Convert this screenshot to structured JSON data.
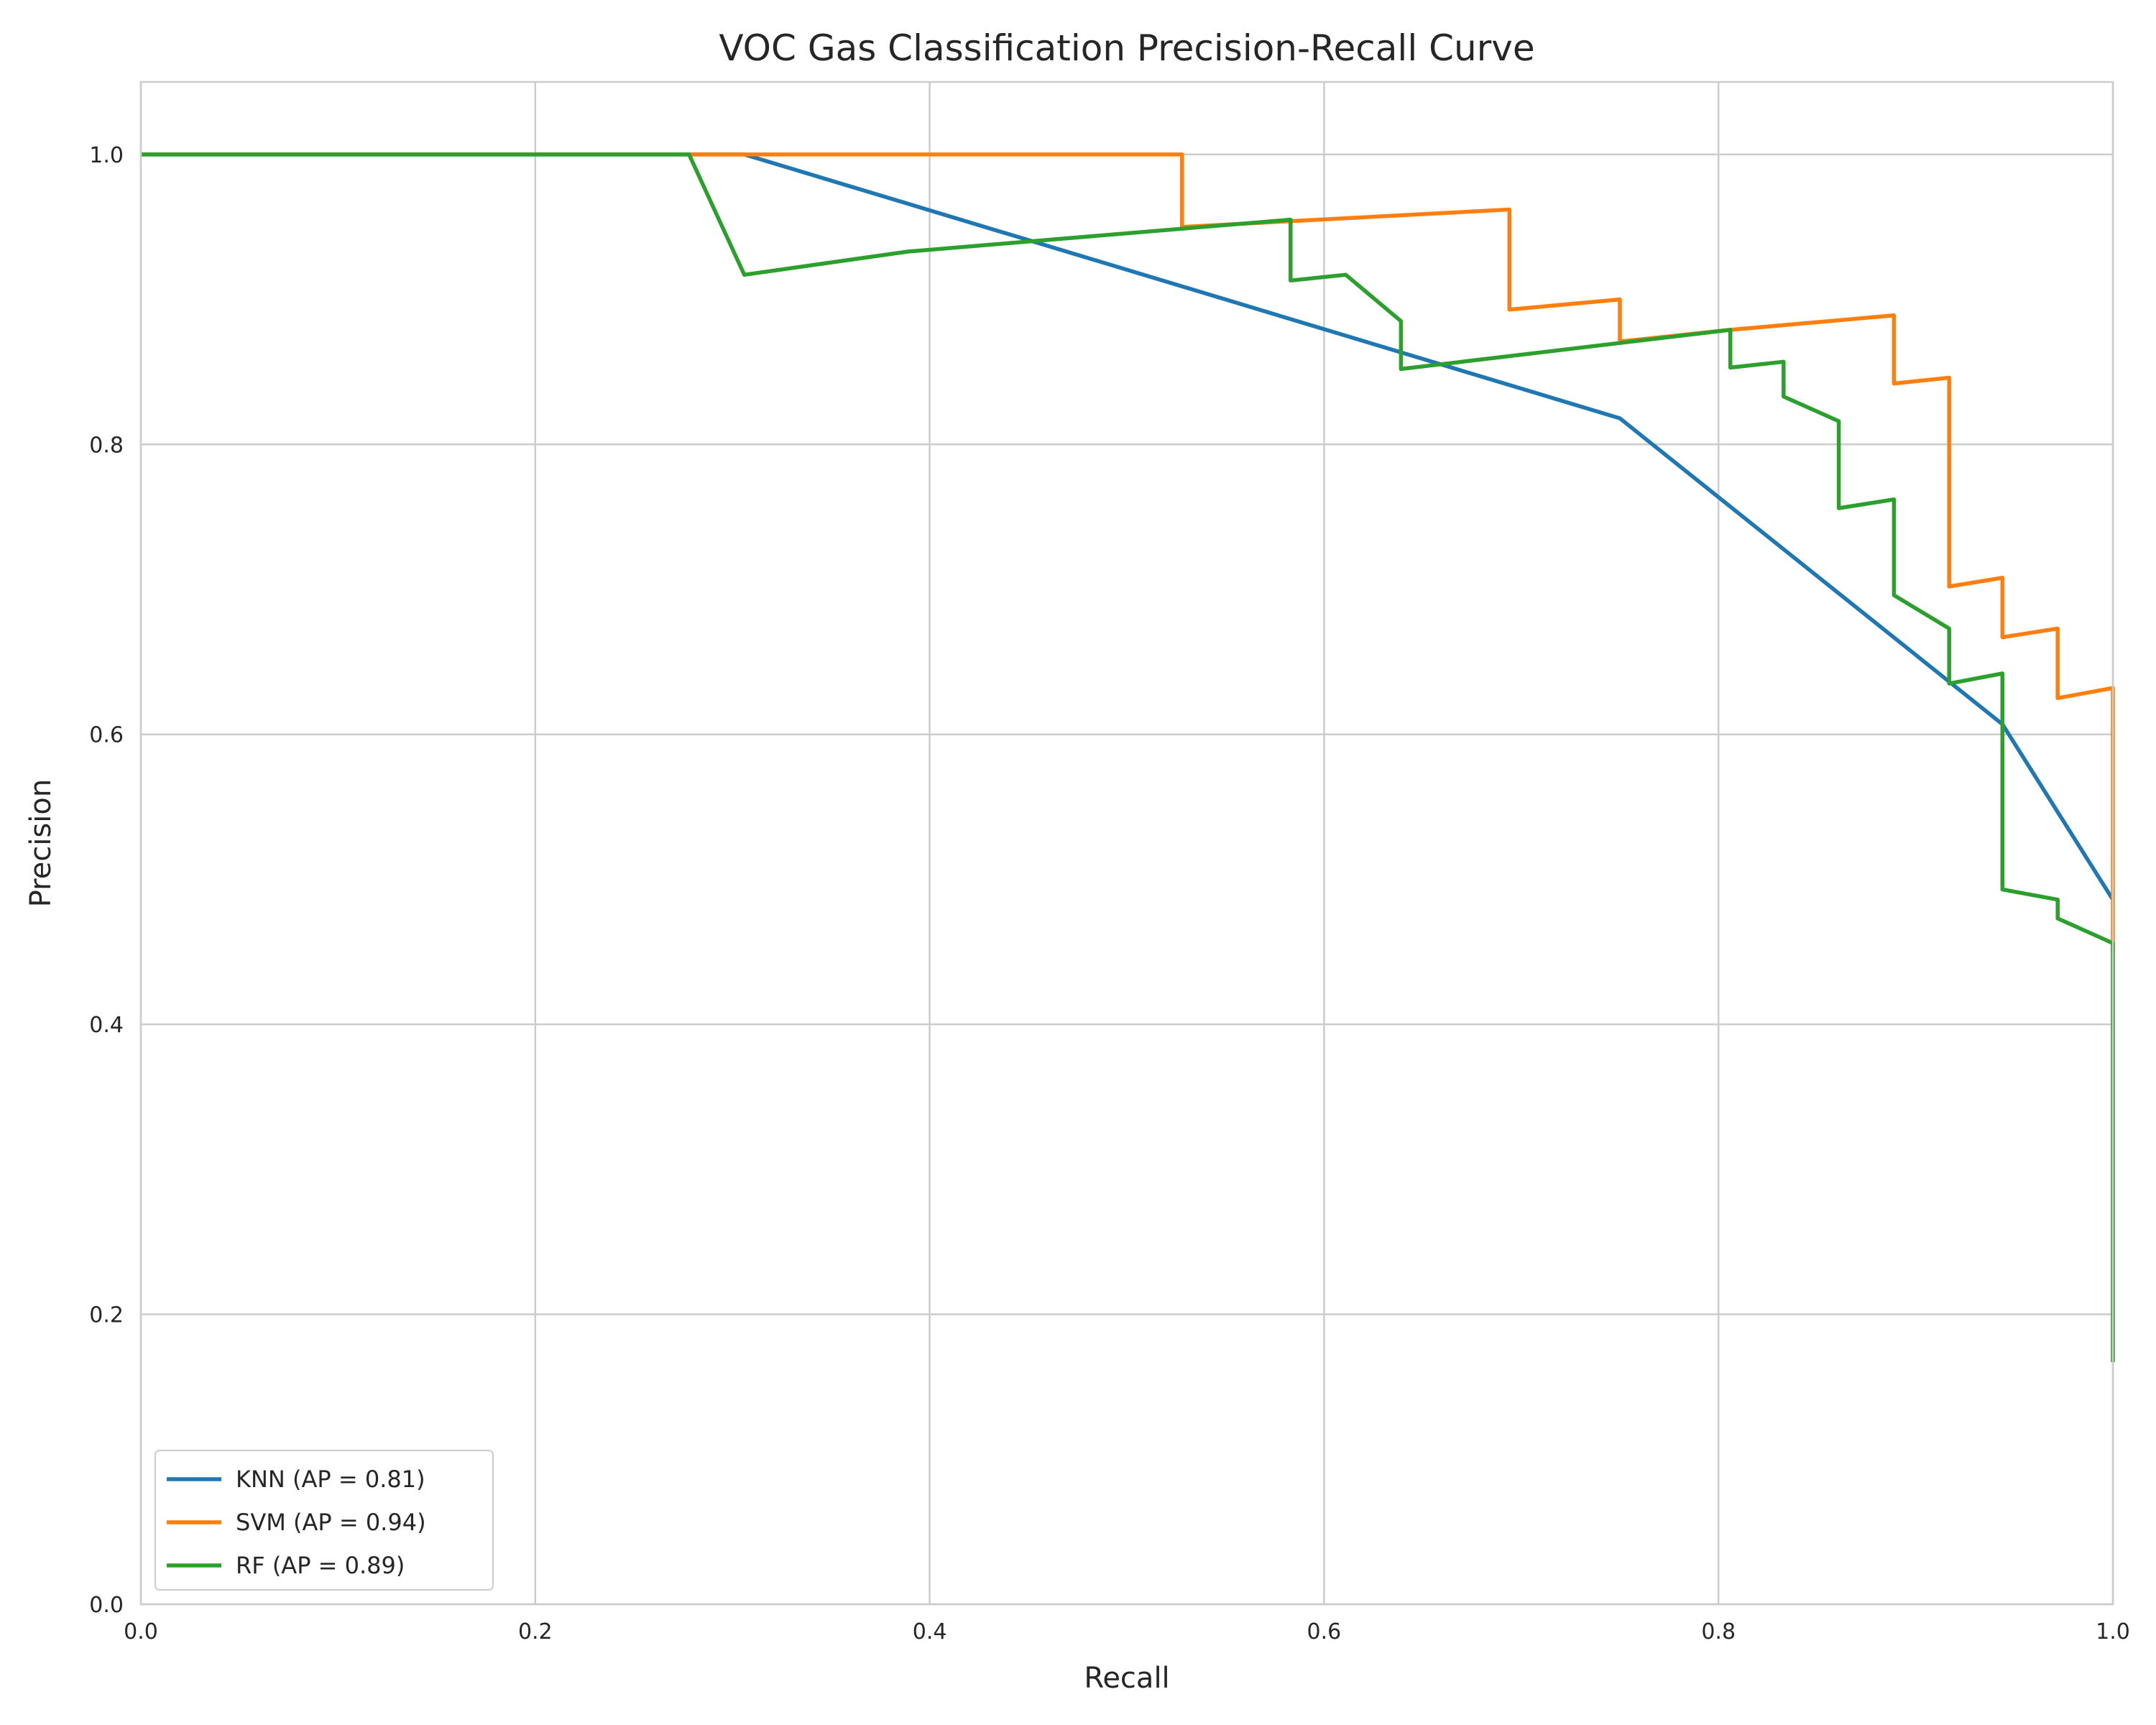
{
  "chart_data": {
    "type": "line",
    "title": "VOC Gas Classification Precision-Recall Curve",
    "xlabel": "Recall",
    "ylabel": "Precision",
    "xlim": [
      0.0,
      1.0
    ],
    "ylim": [
      0.0,
      1.05
    ],
    "x_ticks": [
      0.0,
      0.2,
      0.4,
      0.6,
      0.8,
      1.0
    ],
    "x_tick_labels": [
      "0.0",
      "0.2",
      "0.4",
      "0.6",
      "0.8",
      "1.0"
    ],
    "y_ticks": [
      0.0,
      0.2,
      0.4,
      0.6,
      0.8,
      1.0
    ],
    "y_tick_labels": [
      "0.0",
      "0.2",
      "0.4",
      "0.6",
      "0.8",
      "1.0"
    ],
    "grid": true,
    "legend_position": "lower-left",
    "series": [
      {
        "name": "KNN (AP = 0.81)",
        "color": "#1f77b4",
        "points": [
          [
            0.0,
            1.0
          ],
          [
            0.306,
            1.0
          ],
          [
            0.75,
            0.818
          ],
          [
            0.944,
            0.607
          ],
          [
            1.0,
            0.486
          ]
        ]
      },
      {
        "name": "SVM (AP = 0.94)",
        "color": "#ff7f0e",
        "points": [
          [
            0.0,
            1.0
          ],
          [
            0.528,
            1.0
          ],
          [
            0.528,
            0.95
          ],
          [
            0.694,
            0.962
          ],
          [
            0.694,
            0.893
          ],
          [
            0.75,
            0.9
          ],
          [
            0.75,
            0.871
          ],
          [
            0.806,
            0.879
          ],
          [
            0.889,
            0.889
          ],
          [
            0.889,
            0.842
          ],
          [
            0.917,
            0.846
          ],
          [
            0.917,
            0.702
          ],
          [
            0.944,
            0.708
          ],
          [
            0.944,
            0.667
          ],
          [
            0.972,
            0.673
          ],
          [
            0.972,
            0.625
          ],
          [
            1.0,
            0.632
          ],
          [
            1.0,
            0.45
          ]
        ]
      },
      {
        "name": "RF (AP = 0.89)",
        "color": "#2ca02c",
        "points": [
          [
            0.0,
            1.0
          ],
          [
            0.278,
            1.0
          ],
          [
            0.306,
            0.917
          ],
          [
            0.389,
            0.933
          ],
          [
            0.583,
            0.955
          ],
          [
            0.583,
            0.913
          ],
          [
            0.611,
            0.917
          ],
          [
            0.639,
            0.885
          ],
          [
            0.639,
            0.852
          ],
          [
            0.806,
            0.879
          ],
          [
            0.806,
            0.853
          ],
          [
            0.833,
            0.857
          ],
          [
            0.833,
            0.833
          ],
          [
            0.861,
            0.816
          ],
          [
            0.861,
            0.756
          ],
          [
            0.889,
            0.762
          ],
          [
            0.889,
            0.696
          ],
          [
            0.917,
            0.673
          ],
          [
            0.917,
            0.635
          ],
          [
            0.944,
            0.642
          ],
          [
            0.944,
            0.493
          ],
          [
            0.972,
            0.486
          ],
          [
            0.972,
            0.473
          ],
          [
            1.0,
            0.456
          ],
          [
            1.0,
            0.167
          ]
        ]
      }
    ]
  }
}
